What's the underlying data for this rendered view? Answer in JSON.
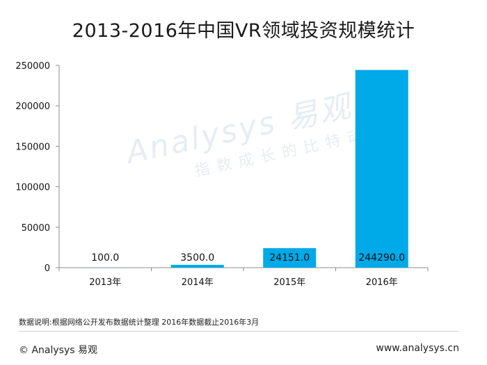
{
  "title": "2013-2016年中国VR领域投资规模统计",
  "watermark": {
    "brand": "Analysys 易观",
    "tagline": "指数成长的比特动力"
  },
  "note": "数据说明:根据网络公开发布数据统计整理  2016年数据截止2016年3月",
  "footer": {
    "left": "© Analysys 易观",
    "right": "www.analysys.cn"
  },
  "colors": {
    "bar": "#00a9e8",
    "axis": "#8c8c8c"
  },
  "chart_data": {
    "type": "bar",
    "title": "2013-2016年中国VR领域投资规模统计",
    "xlabel": "",
    "ylabel": "",
    "categories": [
      "2013年",
      "2014年",
      "2015年",
      "2016年"
    ],
    "values": [
      100.0,
      3500.0,
      24151.0,
      244290.0
    ],
    "data_labels": [
      "100.0",
      "3500.0",
      "24151.0",
      "244290.0"
    ],
    "ylim": [
      0,
      250000
    ],
    "yticks": [
      0,
      50000,
      100000,
      150000,
      200000,
      250000
    ],
    "ytick_labels": [
      "0",
      "50000",
      "100000",
      "150000",
      "200000",
      "250000"
    ],
    "grid": false,
    "legend": "none"
  }
}
